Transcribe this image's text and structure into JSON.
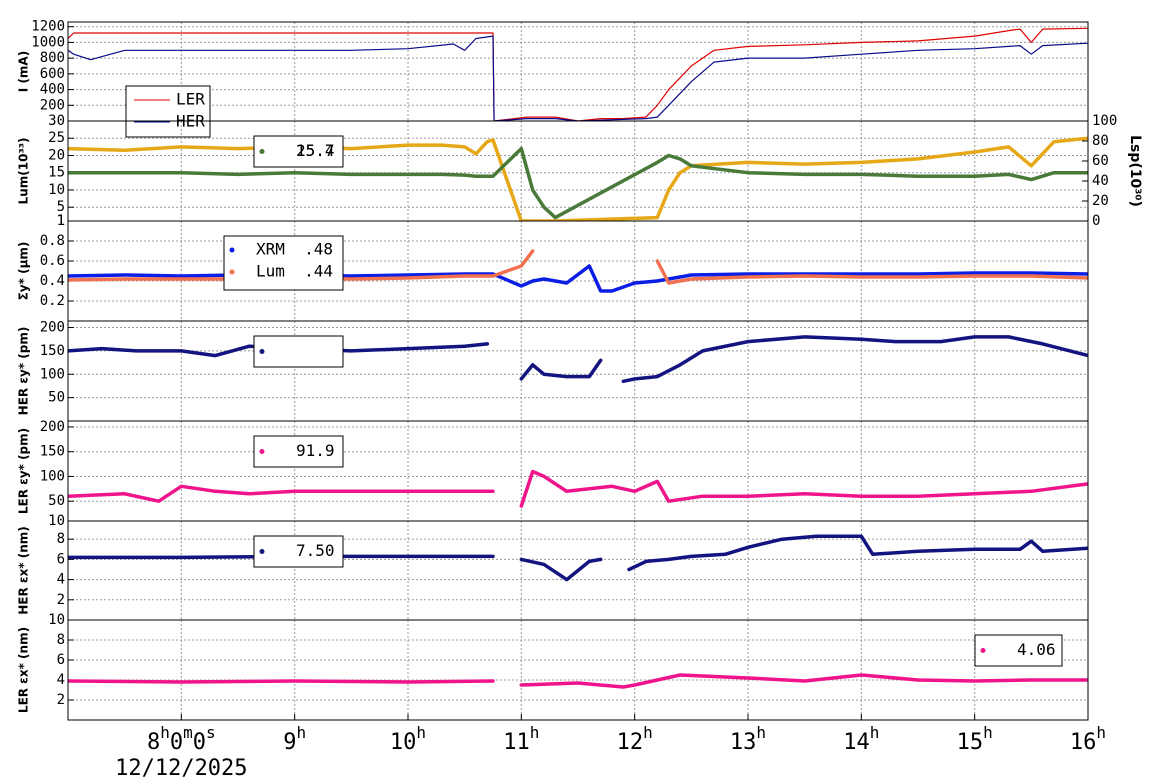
{
  "x_axis": {
    "xlim": [
      7,
      16
    ],
    "xticks": [
      {
        "value": 8,
        "label": "8h0m0s"
      },
      {
        "value": 9,
        "label": "9h"
      },
      {
        "value": 10,
        "label": "10h"
      },
      {
        "value": 11,
        "label": "11h"
      },
      {
        "value": 12,
        "label": "12h"
      },
      {
        "value": 13,
        "label": "13h"
      },
      {
        "value": 14,
        "label": "14h"
      },
      {
        "value": 15,
        "label": "15h"
      },
      {
        "value": 16,
        "label": "16h"
      }
    ],
    "date": "12/12/2025",
    "grid": true
  },
  "chart_data": [
    {
      "type": "line",
      "ylabel": "I (mA)",
      "ylim": [
        0,
        1260
      ],
      "yticks": [
        200,
        400,
        600,
        800,
        1000,
        1200
      ],
      "grid": true,
      "x": [
        7.0,
        7.05,
        7.2,
        7.5,
        8,
        9,
        9.5,
        10,
        10.4,
        10.5,
        10.6,
        10.75,
        10.76,
        11.05,
        11.3,
        11.5,
        11.7,
        11.9,
        12.1,
        12.2,
        12.3,
        12.5,
        12.7,
        13,
        13.5,
        14,
        14.5,
        15,
        15.3,
        15.4,
        15.5,
        15.6,
        16
      ],
      "series": [
        {
          "name": "LER",
          "color": "#e00000",
          "values": [
            1050,
            1120,
            1120,
            1120,
            1120,
            1120,
            1120,
            1120,
            1120,
            1120,
            1120,
            1120,
            0,
            50,
            50,
            0,
            30,
            30,
            50,
            200,
            400,
            700,
            900,
            950,
            970,
            1000,
            1020,
            1080,
            1150,
            1170,
            1000,
            1170,
            1180
          ]
        },
        {
          "name": "HER",
          "color": "#0a0a8c",
          "values": [
            900,
            850,
            780,
            900,
            900,
            900,
            900,
            920,
            980,
            900,
            1050,
            1080,
            0,
            30,
            30,
            0,
            10,
            20,
            30,
            50,
            200,
            500,
            750,
            800,
            800,
            850,
            900,
            920,
            950,
            960,
            850,
            960,
            990
          ]
        }
      ]
    },
    {
      "type": "line",
      "ylabel": "Lum(10³³)",
      "ylim": [
        1,
        30
      ],
      "yticks": [
        1,
        5,
        10,
        15,
        20,
        25,
        30
      ],
      "y2label": "Lsp(10³⁰)",
      "y2lim": [
        0,
        100
      ],
      "y2ticks": [
        0,
        20,
        40,
        60,
        80,
        100
      ],
      "grid": true,
      "x": [
        7,
        7.5,
        8,
        8.5,
        9,
        9.5,
        10,
        10.3,
        10.5,
        10.6,
        10.7,
        10.75,
        11,
        11.1,
        11.2,
        11.3,
        12.2,
        12.3,
        12.4,
        12.5,
        13,
        13.5,
        14,
        14.5,
        15,
        15.3,
        15.5,
        15.7,
        16
      ],
      "series": [
        {
          "name": "25.4",
          "color": "#e6a817",
          "values": [
            22,
            21.5,
            22.5,
            22,
            22.5,
            22,
            23,
            23,
            22.5,
            20.5,
            24,
            24.5,
            1,
            1,
            1,
            1,
            2,
            10,
            15,
            17,
            18,
            17.5,
            18,
            19,
            21,
            22.5,
            17,
            24,
            25
          ]
        },
        {
          "name": "15.7",
          "color": "#4a7a3a",
          "values": [
            15,
            15,
            15,
            14.5,
            15,
            14.5,
            14.5,
            14.5,
            14.3,
            14,
            14,
            14,
            22,
            10,
            5,
            2,
            18,
            20,
            19,
            17,
            15,
            14.5,
            14.5,
            14,
            14,
            14.5,
            13,
            15,
            15
          ]
        }
      ]
    },
    {
      "type": "line",
      "ylabel": "Σy* (μm)",
      "ylim": [
        0,
        1
      ],
      "yticks": [
        0.2,
        0.4,
        0.6,
        0.8,
        1
      ],
      "grid": true,
      "x": [
        7,
        7.5,
        8,
        8.5,
        9,
        9.5,
        10,
        10.5,
        10.75,
        11,
        11.1,
        11.2,
        11.4,
        11.6,
        11.7,
        11.8,
        12,
        12.2,
        12.3,
        12.5,
        13,
        13.5,
        14,
        14.5,
        15,
        15.5,
        16
      ],
      "series": [
        {
          "name": "XRM  .48",
          "color": "#0a1ee6",
          "values": [
            0.45,
            0.46,
            0.45,
            0.46,
            0.46,
            0.45,
            0.46,
            0.47,
            0.47,
            0.35,
            0.4,
            0.42,
            0.38,
            0.55,
            0.3,
            0.3,
            0.38,
            0.4,
            0.42,
            0.46,
            0.47,
            0.47,
            0.47,
            0.47,
            0.48,
            0.48,
            0.47
          ]
        },
        {
          "name": "Lum  .44",
          "color": "#f07050",
          "values": [
            0.41,
            0.42,
            0.42,
            0.42,
            0.43,
            0.42,
            0.43,
            0.45,
            0.45,
            0.55,
            0.7,
            null,
            null,
            null,
            null,
            null,
            null,
            0.6,
            0.38,
            0.42,
            0.44,
            0.45,
            0.44,
            0.44,
            0.45,
            0.45,
            0.43
          ]
        }
      ]
    },
    {
      "type": "line",
      "ylabel": "HER εy* (pm)",
      "ylim": [
        0,
        214
      ],
      "yticks": [
        50,
        100,
        150,
        200
      ],
      "grid": true,
      "x": [
        7,
        7.3,
        7.6,
        8,
        8.3,
        8.6,
        9,
        9.5,
        10,
        10.5,
        10.7,
        10.85,
        11,
        11.1,
        11.2,
        11.4,
        11.6,
        11.7,
        11.8,
        11.9,
        12,
        12.2,
        12.4,
        12.6,
        13,
        13.5,
        14,
        14.3,
        14.7,
        15,
        15.3,
        15.6,
        16
      ],
      "series": [
        {
          "color": "#141480",
          "values": [
            150,
            155,
            150,
            150,
            140,
            160,
            155,
            150,
            155,
            160,
            165,
            null,
            90,
            120,
            100,
            95,
            95,
            130,
            null,
            85,
            90,
            95,
            120,
            150,
            170,
            180,
            175,
            170,
            170,
            180,
            180,
            165,
            140
          ]
        }
      ]
    },
    {
      "type": "line",
      "ylabel": "LER εy* (pm)",
      "ylim": [
        10,
        212
      ],
      "yticks": [
        10,
        50,
        100,
        150,
        200
      ],
      "grid": true,
      "x": [
        7,
        7.5,
        7.8,
        8,
        8.3,
        8.6,
        9,
        9.5,
        10,
        10.5,
        10.75,
        10.85,
        11,
        11.1,
        11.2,
        11.4,
        11.6,
        11.8,
        12,
        12.2,
        12.3,
        12.6,
        13,
        13.5,
        14,
        14.5,
        15,
        15.5,
        16
      ],
      "series": [
        {
          "name": "91.9",
          "color": "#f0148c",
          "values": [
            60,
            65,
            50,
            80,
            70,
            65,
            70,
            70,
            70,
            70,
            70,
            null,
            40,
            110,
            100,
            70,
            75,
            80,
            70,
            90,
            50,
            60,
            60,
            65,
            60,
            60,
            65,
            70,
            85
          ]
        }
      ]
    },
    {
      "type": "line",
      "ylabel": "HER εx* (nm)",
      "ylim": [
        0,
        9.8
      ],
      "yticks": [
        2,
        4,
        6,
        8
      ],
      "grid": true,
      "x": [
        7,
        8,
        9,
        10,
        10.75,
        10.85,
        11,
        11.2,
        11.4,
        11.6,
        11.7,
        11.8,
        11.95,
        12.1,
        12.3,
        12.5,
        12.8,
        13,
        13.3,
        13.6,
        14,
        14.1,
        14.5,
        15,
        15.4,
        15.5,
        15.6,
        16
      ],
      "series": [
        {
          "name": "7.50",
          "color": "#141480",
          "values": [
            6.2,
            6.2,
            6.3,
            6.3,
            6.3,
            null,
            6,
            5.5,
            4,
            5.8,
            6,
            null,
            5,
            5.8,
            6,
            6.3,
            6.5,
            7.2,
            8,
            8.3,
            8.3,
            6.5,
            6.8,
            7,
            7,
            7.8,
            6.8,
            7.1
          ]
        }
      ]
    },
    {
      "type": "line",
      "ylabel": "LER εx* (nm)",
      "ylim": [
        0,
        10
      ],
      "yticks": [
        2,
        4,
        6,
        8,
        10
      ],
      "grid": true,
      "x": [
        7,
        8,
        9,
        10,
        10.75,
        10.85,
        11,
        11.5,
        11.9,
        12,
        12.4,
        13,
        13.5,
        14,
        14.5,
        15,
        15.5,
        16
      ],
      "series": [
        {
          "name": "4.06",
          "color": "#f0148c",
          "values": [
            3.9,
            3.8,
            3.9,
            3.8,
            3.9,
            null,
            3.5,
            3.7,
            3.3,
            3.5,
            4.5,
            4.2,
            3.9,
            4.5,
            4,
            3.9,
            4,
            4
          ]
        }
      ]
    }
  ]
}
